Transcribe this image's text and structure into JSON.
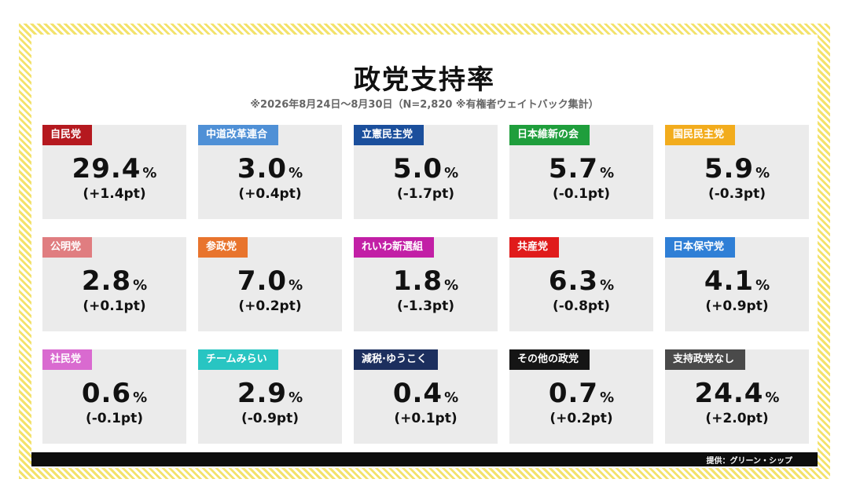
{
  "title": "政党支持率",
  "subtitle": "※2026年8月24日～8月30日（N=2,820 ※有権者ウェイトバック集計）",
  "credit": "提供：グリーン・シップ",
  "chart_data": {
    "type": "table",
    "unit": "%",
    "change_unit": "pt",
    "cards": [
      {
        "party": "自民党",
        "value": "29.4",
        "unit": "%",
        "change": "(+1.4pt)",
        "color": "#b5191f"
      },
      {
        "party": "中道改革連合",
        "value": "3.0",
        "unit": "%",
        "change": "(+0.4pt)",
        "color": "#4f90d6"
      },
      {
        "party": "立憲民主党",
        "value": "5.0",
        "unit": "%",
        "change": "(-1.7pt)",
        "color": "#1b4f9c"
      },
      {
        "party": "日本維新の会",
        "value": "5.7",
        "unit": "%",
        "change": "(-0.1pt)",
        "color": "#1f9e3c"
      },
      {
        "party": "国民民主党",
        "value": "5.9",
        "unit": "%",
        "change": "(-0.3pt)",
        "color": "#f2ac1d"
      },
      {
        "party": "公明党",
        "value": "2.8",
        "unit": "%",
        "change": "(+0.1pt)",
        "color": "#e07d80"
      },
      {
        "party": "参政党",
        "value": "7.0",
        "unit": "%",
        "change": "(+0.2pt)",
        "color": "#e8742d"
      },
      {
        "party": "れいわ新選組",
        "value": "1.8",
        "unit": "%",
        "change": "(-1.3pt)",
        "color": "#c21fa6"
      },
      {
        "party": "共産党",
        "value": "6.3",
        "unit": "%",
        "change": "(-0.8pt)",
        "color": "#e01b1b"
      },
      {
        "party": "日本保守党",
        "value": "4.1",
        "unit": "%",
        "change": "(+0.9pt)",
        "color": "#2f7fd6"
      },
      {
        "party": "社民党",
        "value": "0.6",
        "unit": "%",
        "change": "(-0.1pt)",
        "color": "#d96ad0"
      },
      {
        "party": "チームみらい",
        "value": "2.9",
        "unit": "%",
        "change": "(-0.9pt)",
        "color": "#28c5c2"
      },
      {
        "party": "減税·ゆうこく",
        "value": "0.4",
        "unit": "%",
        "change": "(+0.1pt)",
        "color": "#1c2f5e"
      },
      {
        "party": "その他の政党",
        "value": "0.7",
        "unit": "%",
        "change": "(+0.2pt)",
        "color": "#151515"
      },
      {
        "party": "支持政党なし",
        "value": "24.4",
        "unit": "%",
        "change": "(+2.0pt)",
        "color": "#4a4a4a"
      }
    ]
  }
}
